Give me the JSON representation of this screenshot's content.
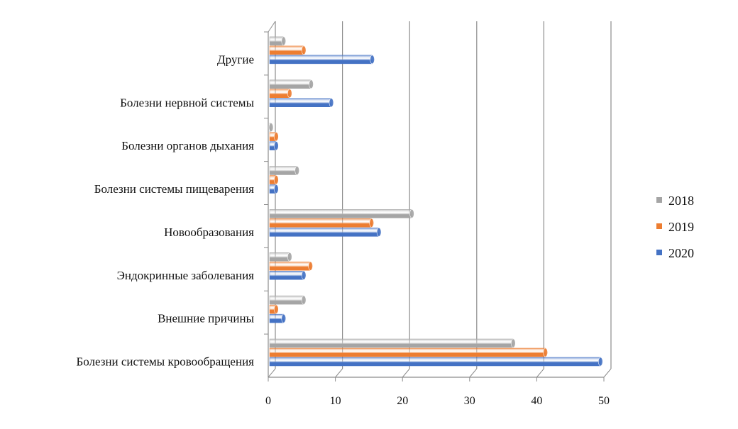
{
  "chart_data": {
    "type": "bar",
    "orientation": "horizontal",
    "style": "3d-cylinder",
    "categories": [
      "Болезни системы кровообращения",
      "Внешние причины",
      "Эндокринные заболевания",
      "Новообразования",
      "Болезни системы пищеварения",
      "Болезни органов дыхания",
      "Болезни нервной системы",
      "Другие"
    ],
    "series": [
      {
        "name": "2018",
        "color": "#a5a5a5",
        "values": [
          36.5,
          5.3,
          3.2,
          21.4,
          4.3,
          0.3,
          6.4,
          2.3
        ]
      },
      {
        "name": "2019",
        "color": "#ed7d31",
        "values": [
          41.3,
          1.2,
          6.3,
          15.4,
          1.2,
          1.2,
          3.2,
          5.3
        ]
      },
      {
        "name": "2020",
        "color": "#4472c4",
        "values": [
          49.5,
          2.3,
          5.3,
          16.5,
          1.2,
          1.2,
          9.4,
          15.5
        ]
      }
    ],
    "xlim": [
      0,
      50
    ],
    "xticks": [
      "0",
      "10",
      "20",
      "30",
      "40",
      "50"
    ],
    "grid": true,
    "legend_position": "right",
    "legend_order": [
      "2018",
      "2019",
      "2020"
    ],
    "title": "",
    "xlabel": "",
    "ylabel": ""
  }
}
